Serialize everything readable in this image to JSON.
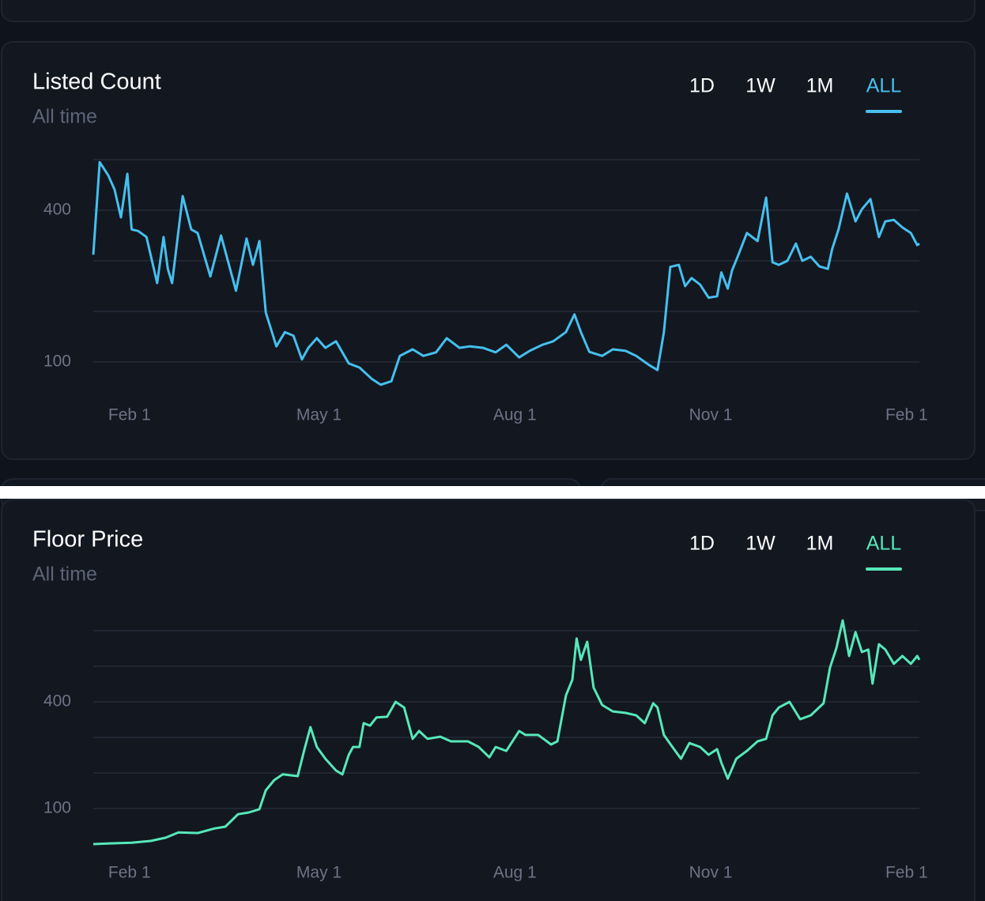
{
  "chart_data": [
    {
      "type": "line",
      "title": "Listed Count",
      "subtitle": "All time",
      "tabs": [
        "1D",
        "1W",
        "1M",
        "ALL"
      ],
      "selected_tab": "ALL",
      "color": "#45c0ee",
      "x": [
        -17,
        -14,
        -10,
        -7,
        -4,
        -1,
        1,
        4,
        8,
        13,
        16,
        18,
        20,
        25,
        29,
        32,
        38,
        43,
        50,
        55,
        58,
        61,
        64,
        69,
        73,
        77,
        81,
        84,
        88,
        92,
        97,
        103,
        108,
        114,
        118,
        123,
        127,
        133,
        138,
        144,
        149,
        155,
        160,
        166,
        172,
        177,
        183,
        188,
        194,
        199,
        205,
        209,
        212,
        216,
        222,
        227,
        233,
        238,
        244,
        248,
        251,
        254,
        258,
        261,
        264,
        268,
        272,
        276,
        278,
        281,
        283,
        286,
        290,
        295,
        299,
        302,
        305,
        309,
        313,
        316,
        320,
        324,
        328,
        330,
        333,
        337,
        341,
        344,
        348,
        352,
        355,
        359,
        363,
        367,
        370,
        371
      ],
      "values": [
        312,
        495,
        469,
        441,
        386,
        472,
        362,
        359,
        347,
        256,
        347,
        284,
        256,
        428,
        362,
        355,
        269,
        350,
        241,
        344,
        292,
        339,
        198,
        131,
        159,
        152,
        105,
        128,
        147,
        128,
        141,
        97,
        89,
        66,
        55,
        62,
        112,
        125,
        112,
        119,
        147,
        128,
        131,
        128,
        119,
        134,
        109,
        122,
        134,
        141,
        159,
        194,
        159,
        120,
        112,
        125,
        122,
        112,
        94,
        84,
        159,
        288,
        292,
        250,
        266,
        253,
        227,
        230,
        277,
        245,
        281,
        312,
        355,
        339,
        425,
        297,
        292,
        300,
        334,
        300,
        308,
        289,
        284,
        323,
        362,
        433,
        378,
        402,
        422,
        347,
        378,
        381,
        366,
        355,
        331,
        334
      ],
      "xlim": [
        -17,
        371
      ],
      "xticks": [
        {
          "value": 0,
          "label": "Feb 1"
        },
        {
          "value": 89,
          "label": "May 1"
        },
        {
          "value": 181,
          "label": "Aug 1"
        },
        {
          "value": 273,
          "label": "Nov 1"
        },
        {
          "value": 365,
          "label": "Feb 1"
        }
      ],
      "ylim": [
        50,
        500
      ],
      "yticks": [
        100,
        400
      ],
      "ygrid": [
        100,
        200,
        300,
        400,
        500
      ],
      "grid": true
    },
    {
      "type": "line",
      "title": "Floor Price",
      "subtitle": "All time",
      "tabs": [
        "1D",
        "1W",
        "1M",
        "ALL"
      ],
      "selected_tab": "ALL",
      "color": "#56e8b9",
      "x": [
        -17,
        -9,
        1,
        10,
        17,
        23,
        32,
        40,
        45,
        51,
        56,
        61,
        64,
        68,
        72,
        79,
        82,
        85,
        88,
        92,
        97,
        100,
        103,
        105,
        108,
        110,
        113,
        116,
        121,
        125,
        129,
        133,
        136,
        140,
        146,
        151,
        159,
        164,
        169,
        172,
        177,
        183,
        186,
        192,
        198,
        201,
        205,
        208,
        210,
        212,
        215,
        218,
        222,
        227,
        233,
        238,
        242,
        246,
        248,
        251,
        255,
        259,
        263,
        268,
        272,
        276,
        278,
        281,
        285,
        290,
        295,
        299,
        302,
        305,
        310,
        315,
        320,
        326,
        329,
        332,
        335,
        338,
        341,
        344,
        347,
        349,
        352,
        355,
        359,
        363,
        367,
        370,
        371
      ],
      "values": [
        0,
        2,
        4,
        9,
        18,
        33,
        31,
        44,
        49,
        84,
        89,
        98,
        151,
        180,
        196,
        191,
        262,
        329,
        273,
        240,
        207,
        196,
        251,
        273,
        273,
        340,
        333,
        356,
        358,
        400,
        384,
        296,
        318,
        296,
        302,
        289,
        289,
        273,
        244,
        273,
        262,
        318,
        307,
        307,
        280,
        289,
        418,
        462,
        578,
        518,
        569,
        440,
        391,
        373,
        369,
        362,
        340,
        396,
        384,
        307,
        273,
        240,
        284,
        273,
        251,
        267,
        229,
        184,
        240,
        262,
        289,
        296,
        362,
        384,
        400,
        351,
        362,
        396,
        496,
        551,
        629,
        529,
        596,
        540,
        547,
        451,
        562,
        547,
        507,
        529,
        507,
        529,
        518
      ],
      "xlim": [
        -17,
        371
      ],
      "xticks": [
        {
          "value": 0,
          "label": "Feb 1"
        },
        {
          "value": 89,
          "label": "May 1"
        },
        {
          "value": 181,
          "label": "Aug 1"
        },
        {
          "value": 273,
          "label": "Nov 1"
        },
        {
          "value": 365,
          "label": "Feb 1"
        }
      ],
      "ylim": [
        0,
        650
      ],
      "yticks": [
        100,
        400
      ],
      "ygrid": [
        100,
        200,
        300,
        400,
        500,
        600
      ],
      "grid": true
    }
  ]
}
